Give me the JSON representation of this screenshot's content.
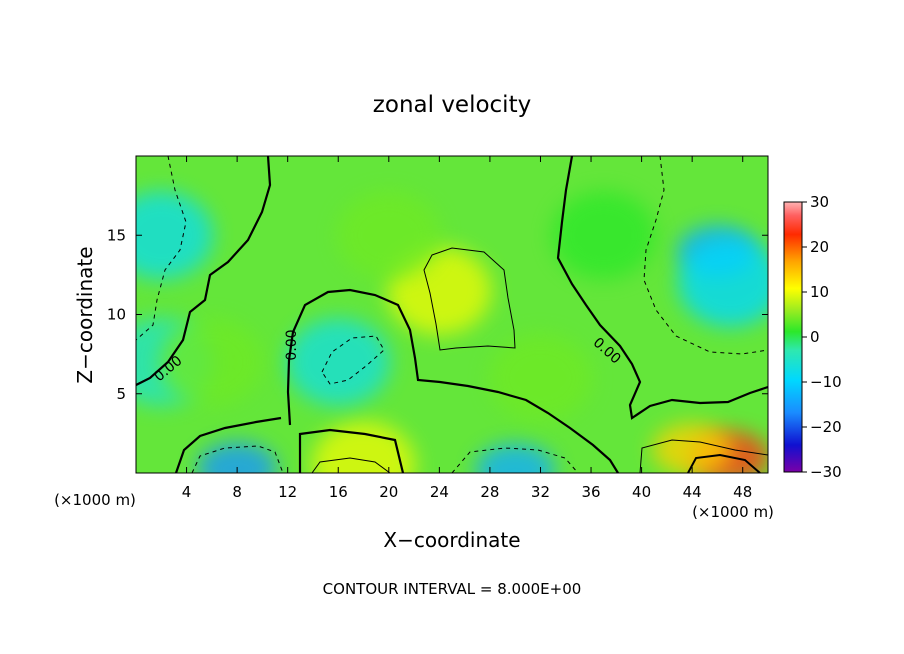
{
  "chart_data": {
    "type": "heatmap",
    "title": "zonal velocity",
    "xlabel": "X−coordinate",
    "ylabel": "Z−coordinate",
    "x_unit_label_left": "(×1000 m)",
    "x_unit_label_right": "(×1000 m)",
    "footer": "CONTOUR INTERVAL = 8.000E+00",
    "xlim": [
      0,
      50
    ],
    "ylim": [
      0,
      20
    ],
    "x_ticks": [
      4,
      8,
      12,
      16,
      20,
      24,
      28,
      32,
      36,
      40,
      44,
      48
    ],
    "x_tick_labels": [
      "4",
      "8",
      "12",
      "16",
      "20",
      "24",
      "28",
      "32",
      "36",
      "40",
      "44",
      "48"
    ],
    "y_ticks": [
      5,
      10,
      15
    ],
    "y_tick_labels": [
      "5",
      "10",
      "15"
    ],
    "colorbar": {
      "range": [
        -30,
        30
      ],
      "ticks": [
        30,
        20,
        10,
        0,
        -10,
        -20,
        -30
      ],
      "tick_labels": [
        "30",
        "20",
        "10",
        "0",
        "−10",
        "−20",
        "−30"
      ]
    },
    "contour_labels": [
      "0.00",
      "0.00",
      "0.00"
    ],
    "features": [
      {
        "x": 47,
        "z": 1,
        "value": 24
      },
      {
        "x": 44,
        "z": 1.5,
        "value": 14
      },
      {
        "x": 24,
        "z": 11.5,
        "value": 10
      },
      {
        "x": 18,
        "z": 0.5,
        "value": 10
      },
      {
        "x": 8,
        "z": 0.3,
        "value": -16
      },
      {
        "x": 30,
        "z": 0.2,
        "value": -14
      },
      {
        "x": 46,
        "z": 14,
        "value": -14
      },
      {
        "x": 47,
        "z": 12,
        "value": -10
      },
      {
        "x": 16,
        "z": 7,
        "value": -7
      },
      {
        "x": 2,
        "z": 15,
        "value": -8
      },
      {
        "x": 2,
        "z": 7,
        "value": -5
      },
      {
        "x": 37,
        "z": 15,
        "value": 1
      },
      {
        "x": 6,
        "z": 7,
        "value": 4
      },
      {
        "x": 20,
        "z": 15,
        "value": 4
      },
      {
        "x": 32,
        "z": 6,
        "value": 4
      }
    ]
  }
}
